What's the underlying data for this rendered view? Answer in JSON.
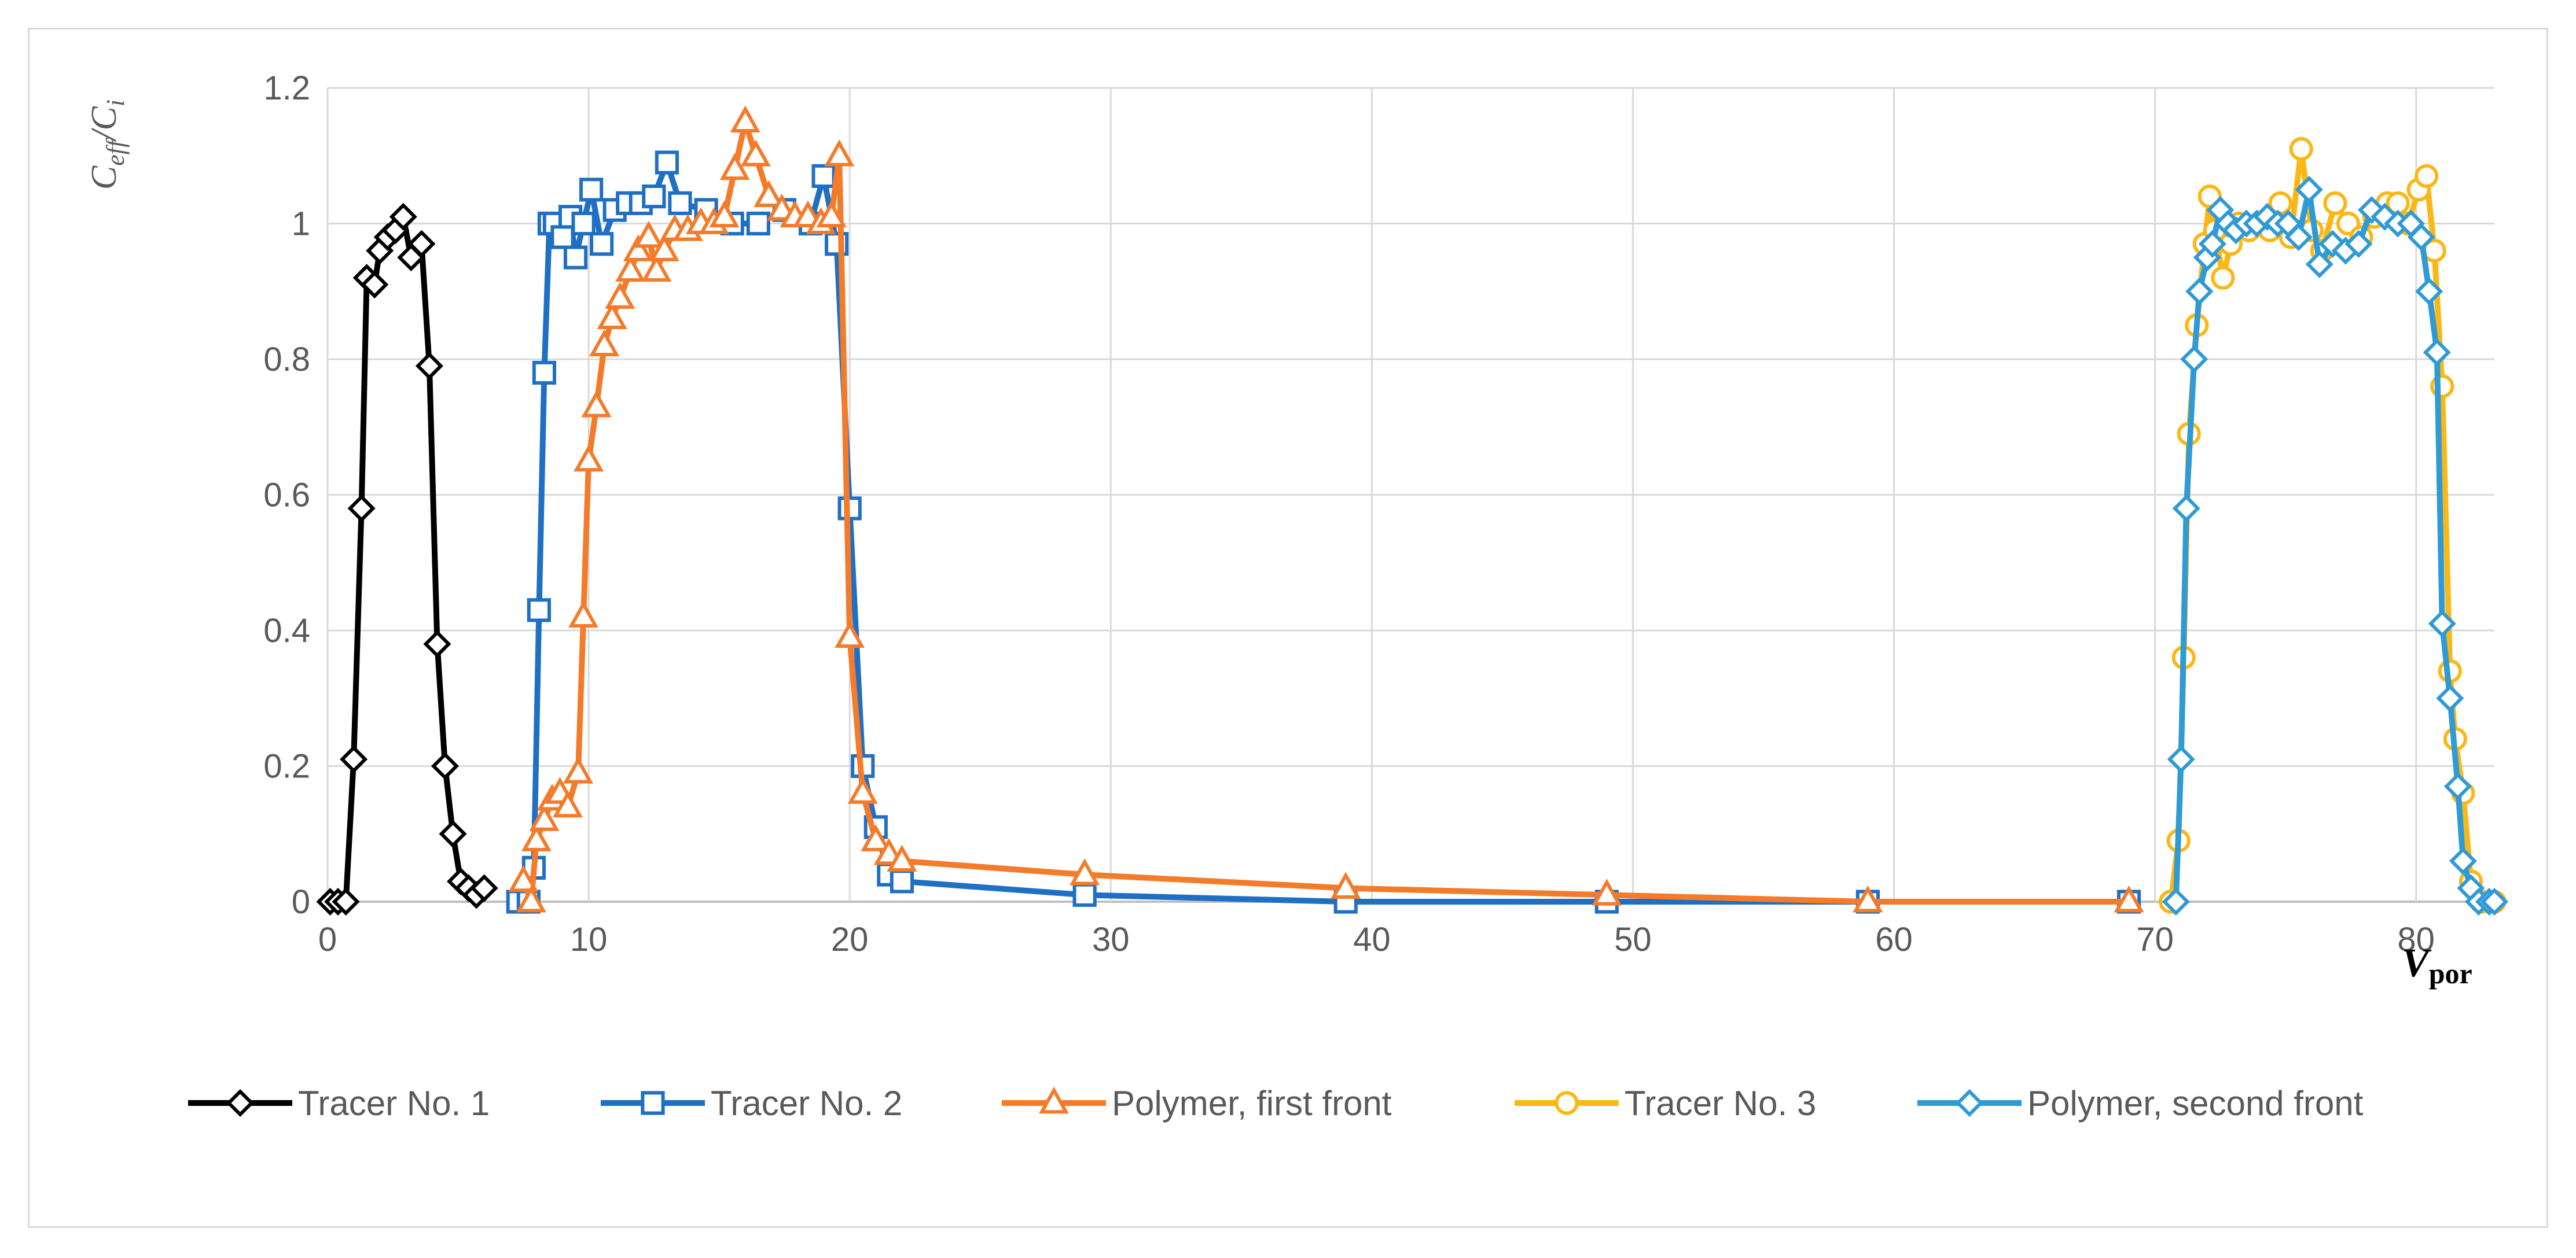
{
  "chart_data": {
    "type": "line",
    "xlabel_main": "V",
    "xlabel_sub": "por",
    "ylabel_main": "C",
    "ylabel_sub_num": "eff",
    "ylabel_sep": "/",
    "ylabel_sub_den": "i",
    "xlim": [
      0,
      83
    ],
    "ylim": [
      0,
      1.2
    ],
    "x_ticks": [
      "0",
      "10",
      "20",
      "30",
      "40",
      "50",
      "60",
      "70",
      "80"
    ],
    "y_ticks": [
      "0",
      "0.2",
      "0.4",
      "0.6",
      "0.8",
      "1",
      "1.2"
    ],
    "grid": true,
    "legend_position": "bottom",
    "series": [
      {
        "name": "Tracer No. 1",
        "color": "#000000",
        "marker": "diamond",
        "points": [
          [
            0.1,
            0.0
          ],
          [
            0.4,
            0.0
          ],
          [
            0.7,
            0.0
          ],
          [
            1.0,
            0.21
          ],
          [
            1.3,
            0.58
          ],
          [
            1.5,
            0.92
          ],
          [
            1.8,
            0.91
          ],
          [
            2.0,
            0.96
          ],
          [
            2.3,
            0.98
          ],
          [
            2.6,
            0.99
          ],
          [
            2.9,
            1.01
          ],
          [
            3.2,
            0.95
          ],
          [
            3.6,
            0.97
          ],
          [
            3.9,
            0.79
          ],
          [
            4.2,
            0.38
          ],
          [
            4.5,
            0.2
          ],
          [
            4.8,
            0.1
          ],
          [
            5.1,
            0.03
          ],
          [
            5.4,
            0.02
          ],
          [
            5.7,
            0.01
          ],
          [
            6.0,
            0.02
          ]
        ]
      },
      {
        "name": "Tracer No. 2",
        "color": "#1f6fc4",
        "marker": "square",
        "points": [
          [
            7.3,
            0.0
          ],
          [
            7.7,
            0.0
          ],
          [
            7.9,
            0.05
          ],
          [
            8.1,
            0.43
          ],
          [
            8.3,
            0.78
          ],
          [
            8.5,
            1.0
          ],
          [
            8.7,
            1.0
          ],
          [
            9.0,
            0.98
          ],
          [
            9.3,
            1.01
          ],
          [
            9.5,
            0.95
          ],
          [
            9.8,
            1.0
          ],
          [
            10.1,
            1.05
          ],
          [
            10.5,
            0.97
          ],
          [
            11.0,
            1.02
          ],
          [
            11.5,
            1.03
          ],
          [
            12.0,
            1.03
          ],
          [
            12.5,
            1.04
          ],
          [
            13.0,
            1.09
          ],
          [
            13.5,
            1.03
          ],
          [
            14.5,
            1.02
          ],
          [
            15.5,
            1.0
          ],
          [
            16.5,
            1.0
          ],
          [
            17.5,
            1.02
          ],
          [
            18.5,
            1.0
          ],
          [
            19.0,
            1.07
          ],
          [
            19.5,
            0.97
          ],
          [
            20.0,
            0.58
          ],
          [
            20.5,
            0.2
          ],
          [
            21.0,
            0.11
          ],
          [
            21.5,
            0.04
          ],
          [
            22.0,
            0.03
          ],
          [
            29.0,
            0.01
          ],
          [
            39.0,
            0.0
          ],
          [
            49.0,
            0.0
          ],
          [
            59.0,
            0.0
          ],
          [
            69.0,
            0.0
          ]
        ]
      },
      {
        "name": "Polymer, first front",
        "color": "#f47b2a",
        "marker": "triangle",
        "points": [
          [
            7.5,
            0.03
          ],
          [
            7.8,
            0.0
          ],
          [
            8.0,
            0.09
          ],
          [
            8.3,
            0.12
          ],
          [
            8.6,
            0.15
          ],
          [
            8.9,
            0.16
          ],
          [
            9.2,
            0.14
          ],
          [
            9.6,
            0.19
          ],
          [
            9.8,
            0.42
          ],
          [
            10.0,
            0.65
          ],
          [
            10.3,
            0.73
          ],
          [
            10.6,
            0.82
          ],
          [
            10.9,
            0.86
          ],
          [
            11.2,
            0.89
          ],
          [
            11.6,
            0.93
          ],
          [
            11.9,
            0.96
          ],
          [
            12.3,
            0.98
          ],
          [
            12.6,
            0.93
          ],
          [
            12.9,
            0.96
          ],
          [
            13.3,
            0.99
          ],
          [
            13.8,
            0.99
          ],
          [
            14.3,
            1.0
          ],
          [
            14.8,
            1.0
          ],
          [
            15.2,
            1.01
          ],
          [
            15.6,
            1.08
          ],
          [
            16.0,
            1.15
          ],
          [
            16.4,
            1.1
          ],
          [
            16.9,
            1.04
          ],
          [
            17.4,
            1.02
          ],
          [
            17.9,
            1.01
          ],
          [
            18.4,
            1.01
          ],
          [
            18.9,
            1.0
          ],
          [
            19.3,
            1.01
          ],
          [
            19.6,
            1.1
          ],
          [
            20.0,
            0.39
          ],
          [
            20.5,
            0.16
          ],
          [
            21.0,
            0.09
          ],
          [
            21.5,
            0.07
          ],
          [
            22.0,
            0.06
          ],
          [
            29.0,
            0.04
          ],
          [
            39.0,
            0.02
          ],
          [
            49.0,
            0.01
          ],
          [
            59.0,
            0.0
          ],
          [
            69.0,
            0.0
          ]
        ]
      },
      {
        "name": "Tracer No. 3",
        "color": "#fbb716",
        "marker": "circle",
        "points": [
          [
            70.6,
            0.0
          ],
          [
            70.9,
            0.09
          ],
          [
            71.1,
            0.36
          ],
          [
            71.3,
            0.69
          ],
          [
            71.6,
            0.85
          ],
          [
            71.9,
            0.97
          ],
          [
            72.1,
            1.04
          ],
          [
            72.3,
            0.99
          ],
          [
            72.6,
            0.92
          ],
          [
            72.9,
            0.97
          ],
          [
            73.2,
            1.0
          ],
          [
            73.6,
            0.99
          ],
          [
            74.0,
            1.0
          ],
          [
            74.4,
            0.99
          ],
          [
            74.8,
            1.03
          ],
          [
            75.2,
            0.98
          ],
          [
            75.6,
            1.11
          ],
          [
            76.0,
            0.99
          ],
          [
            76.4,
            0.96
          ],
          [
            76.9,
            1.03
          ],
          [
            77.4,
            1.0
          ],
          [
            77.9,
            0.98
          ],
          [
            78.4,
            1.01
          ],
          [
            78.9,
            1.03
          ],
          [
            79.3,
            1.03
          ],
          [
            79.7,
            1.0
          ],
          [
            80.1,
            1.05
          ],
          [
            80.4,
            1.07
          ],
          [
            80.7,
            0.96
          ],
          [
            81.0,
            0.76
          ],
          [
            81.3,
            0.34
          ],
          [
            81.5,
            0.24
          ],
          [
            81.8,
            0.16
          ],
          [
            82.1,
            0.03
          ],
          [
            82.5,
            0.0
          ],
          [
            83.0,
            0.0
          ]
        ]
      },
      {
        "name": "Polymer, second front",
        "color": "#2e9ad6",
        "marker": "diamond",
        "points": [
          [
            70.8,
            0.0
          ],
          [
            71.0,
            0.21
          ],
          [
            71.2,
            0.58
          ],
          [
            71.5,
            0.8
          ],
          [
            71.7,
            0.9
          ],
          [
            72.0,
            0.95
          ],
          [
            72.2,
            0.97
          ],
          [
            72.5,
            1.02
          ],
          [
            72.8,
            1.0
          ],
          [
            73.1,
            0.99
          ],
          [
            73.5,
            1.0
          ],
          [
            73.9,
            1.0
          ],
          [
            74.3,
            1.01
          ],
          [
            74.7,
            1.0
          ],
          [
            75.1,
            1.0
          ],
          [
            75.5,
            0.98
          ],
          [
            75.9,
            1.05
          ],
          [
            76.3,
            0.94
          ],
          [
            76.8,
            0.97
          ],
          [
            77.3,
            0.96
          ],
          [
            77.8,
            0.97
          ],
          [
            78.3,
            1.02
          ],
          [
            78.8,
            1.01
          ],
          [
            79.3,
            1.0
          ],
          [
            79.8,
            1.0
          ],
          [
            80.2,
            0.98
          ],
          [
            80.5,
            0.9
          ],
          [
            80.8,
            0.81
          ],
          [
            81.0,
            0.41
          ],
          [
            81.3,
            0.3
          ],
          [
            81.6,
            0.17
          ],
          [
            81.8,
            0.06
          ],
          [
            82.1,
            0.02
          ],
          [
            82.4,
            0.0
          ],
          [
            82.8,
            0.0
          ],
          [
            83.0,
            0.0
          ]
        ]
      }
    ]
  }
}
